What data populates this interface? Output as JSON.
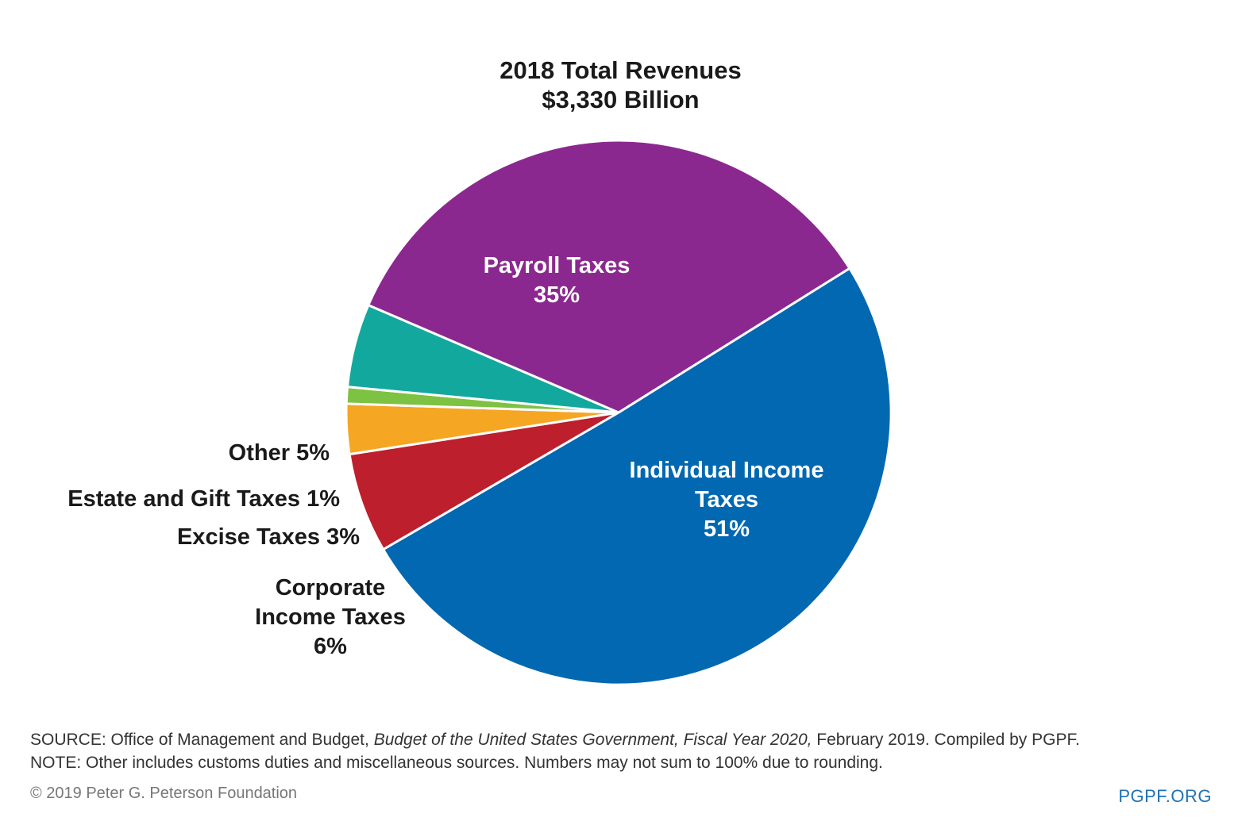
{
  "chart_data": {
    "type": "pie",
    "title_lines": [
      "2018 Total Revenues",
      "$3,330 Billion"
    ],
    "slices": [
      {
        "name": "Individual Income Taxes",
        "label_lines": [
          "Individual Income",
          "Taxes",
          "51%"
        ],
        "value": 51,
        "color": "#0168b1"
      },
      {
        "name": "Corporate Income Taxes",
        "label_lines": [
          "Corporate",
          "Income Taxes",
          "6%"
        ],
        "value": 6,
        "color": "#bd1f2d"
      },
      {
        "name": "Excise Taxes",
        "label_lines": [
          "Excise Taxes 3%"
        ],
        "value": 3,
        "color": "#f5a623"
      },
      {
        "name": "Estate and Gift Taxes",
        "label_lines": [
          "Estate and Gift Taxes 1%"
        ],
        "value": 1,
        "color": "#7dc242"
      },
      {
        "name": "Other",
        "label_lines": [
          "Other 5%"
        ],
        "value": 5,
        "color": "#13a89e"
      },
      {
        "name": "Payroll Taxes",
        "label_lines": [
          "Payroll Taxes",
          "35%"
        ],
        "value": 35,
        "color": "#8b288f"
      }
    ]
  },
  "footnotes": {
    "source_prefix": "SOURCE: Office of Management and Budget, ",
    "source_italic": "Budget of the United States Government, Fiscal Year 2020,",
    "source_suffix": " February 2019. Compiled by PGPF.",
    "note": "NOTE: Other includes customs duties and miscellaneous sources. Numbers may not sum to 100% due to rounding."
  },
  "copyright": "© 2019 Peter G. Peterson Foundation",
  "brand": "PGPF.ORG"
}
